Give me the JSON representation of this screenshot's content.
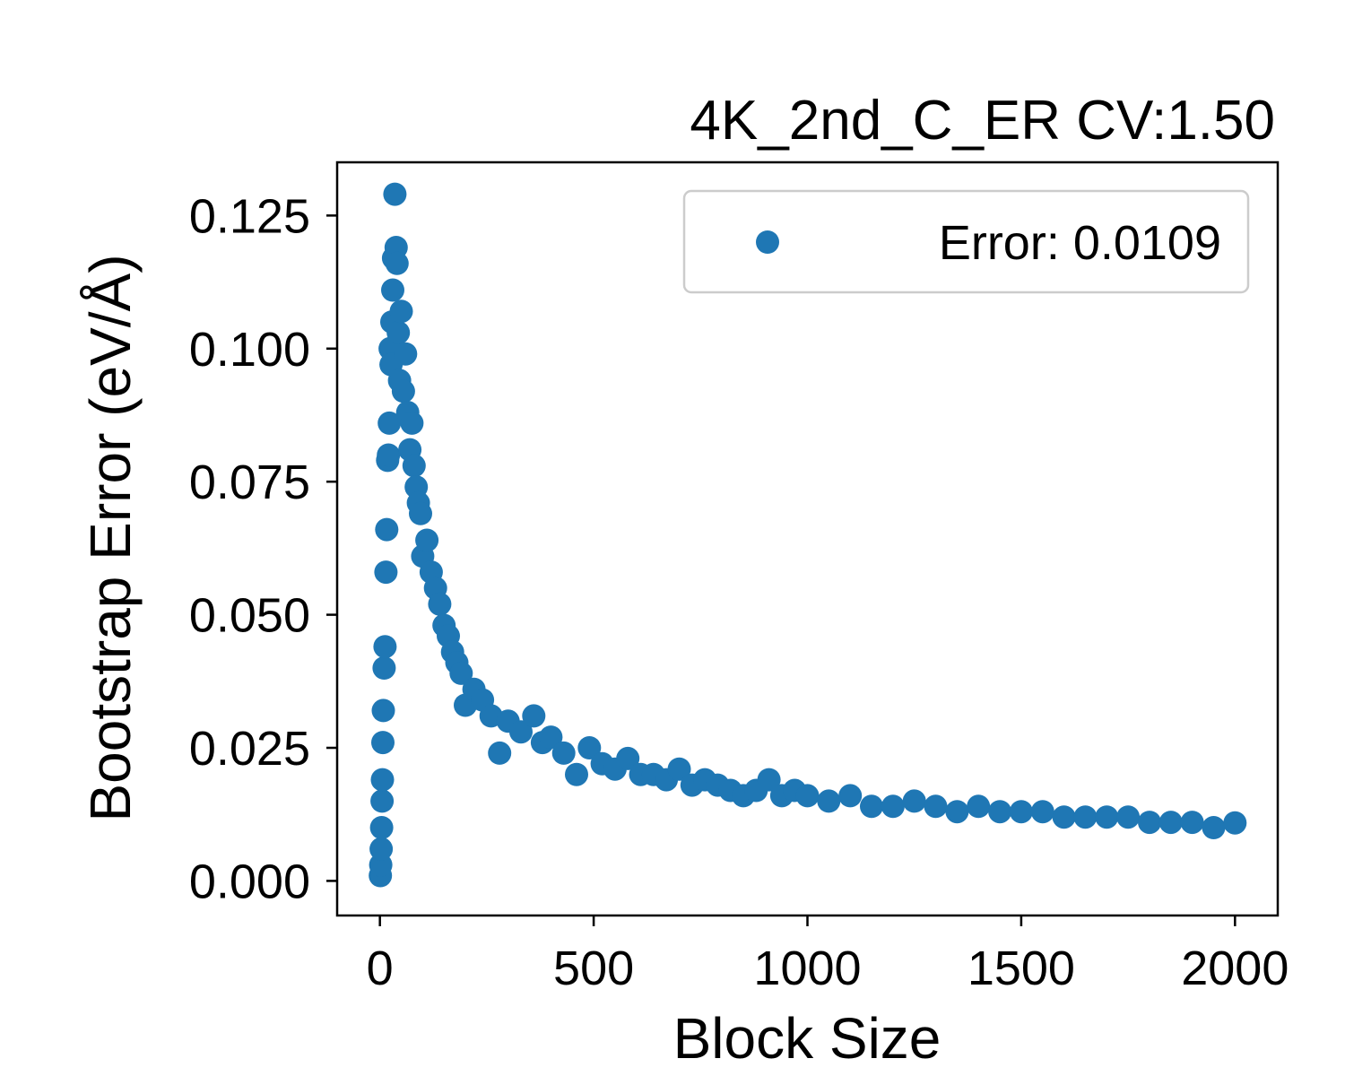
{
  "chart_data": {
    "type": "scatter",
    "title": "4K_2nd_C_ER CV:1.50",
    "xlabel": "Block Size",
    "ylabel": "Bootstrap Error (eV/Å)",
    "xlim": [
      -100,
      2100
    ],
    "ylim": [
      -0.0065,
      0.135
    ],
    "xticks": [
      0,
      500,
      1000,
      1500,
      2000
    ],
    "xtick_labels": [
      "0",
      "500",
      "1000",
      "1500",
      "2000"
    ],
    "yticks": [
      0.0,
      0.025,
      0.05,
      0.075,
      0.1,
      0.125
    ],
    "ytick_labels": [
      "0.000",
      "0.025",
      "0.050",
      "0.075",
      "0.100",
      "0.125"
    ],
    "grid": false,
    "legend_position": "top-right",
    "marker_color": "#1f77b4",
    "series": [
      {
        "name": "Error: 0.0109",
        "x": [
          1,
          2,
          3,
          4,
          5,
          6,
          7,
          8,
          10,
          12,
          14,
          16,
          18,
          20,
          22,
          24,
          26,
          28,
          30,
          32,
          35,
          38,
          40,
          43,
          46,
          50,
          55,
          60,
          65,
          70,
          75,
          80,
          85,
          90,
          95,
          100,
          110,
          120,
          130,
          140,
          150,
          160,
          170,
          180,
          190,
          200,
          220,
          240,
          260,
          280,
          300,
          330,
          360,
          380,
          400,
          430,
          460,
          490,
          520,
          550,
          580,
          610,
          640,
          670,
          700,
          730,
          760,
          790,
          820,
          850,
          880,
          910,
          940,
          970,
          1000,
          1050,
          1100,
          1150,
          1200,
          1250,
          1300,
          1350,
          1400,
          1450,
          1500,
          1550,
          1600,
          1650,
          1700,
          1750,
          1800,
          1850,
          1900,
          1950,
          2000
        ],
        "y": [
          0.001,
          0.003,
          0.006,
          0.01,
          0.015,
          0.019,
          0.026,
          0.032,
          0.04,
          0.044,
          0.058,
          0.066,
          0.079,
          0.08,
          0.086,
          0.1,
          0.097,
          0.105,
          0.111,
          0.117,
          0.129,
          0.119,
          0.116,
          0.103,
          0.094,
          0.107,
          0.092,
          0.099,
          0.088,
          0.081,
          0.086,
          0.078,
          0.074,
          0.071,
          0.069,
          0.061,
          0.064,
          0.058,
          0.055,
          0.052,
          0.048,
          0.046,
          0.043,
          0.041,
          0.039,
          0.033,
          0.036,
          0.034,
          0.031,
          0.024,
          0.03,
          0.028,
          0.031,
          0.026,
          0.027,
          0.024,
          0.02,
          0.025,
          0.022,
          0.021,
          0.023,
          0.02,
          0.02,
          0.019,
          0.021,
          0.018,
          0.019,
          0.018,
          0.017,
          0.016,
          0.017,
          0.019,
          0.016,
          0.017,
          0.016,
          0.015,
          0.016,
          0.014,
          0.014,
          0.015,
          0.014,
          0.013,
          0.014,
          0.013,
          0.013,
          0.013,
          0.012,
          0.012,
          0.012,
          0.012,
          0.011,
          0.011,
          0.011,
          0.01,
          0.0109
        ]
      }
    ]
  }
}
